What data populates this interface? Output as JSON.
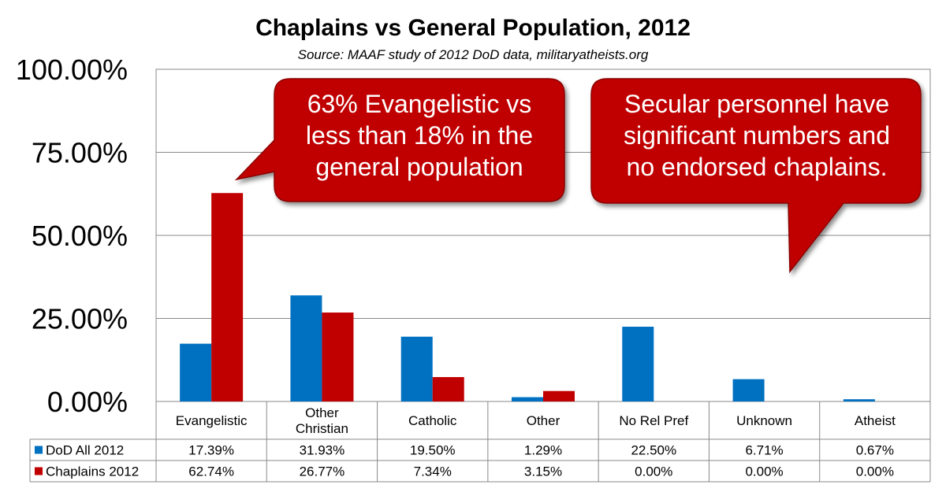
{
  "chart_data": {
    "type": "bar",
    "title": "Chaplains vs General Population, 2012",
    "subtitle": "Source: MAAF study of 2012 DoD data, militaryatheists.org",
    "categories": [
      [
        "Evangelistic"
      ],
      [
        "Other",
        "Christian"
      ],
      [
        "Catholic"
      ],
      [
        "Other"
      ],
      [
        "No Rel Pref"
      ],
      [
        "Unknown"
      ],
      [
        "Atheist"
      ]
    ],
    "series": [
      {
        "name": "DoD All 2012",
        "color": "#0070C0",
        "values": [
          17.39,
          31.93,
          19.5,
          1.29,
          22.5,
          6.71,
          0.67
        ],
        "labels": [
          "17.39%",
          "31.93%",
          "19.50%",
          "1.29%",
          "22.50%",
          "6.71%",
          "0.67%"
        ]
      },
      {
        "name": "Chaplains 2012",
        "color": "#C00000",
        "values": [
          62.74,
          26.77,
          7.34,
          3.15,
          0.0,
          0.0,
          0.0
        ],
        "labels": [
          "62.74%",
          "26.77%",
          "7.34%",
          "3.15%",
          "0.00%",
          "0.00%",
          "0.00%"
        ]
      }
    ],
    "ylim": [
      0,
      100
    ],
    "yticks": [
      "0.00%",
      "25.00%",
      "50.00%",
      "75.00%",
      "100.00%"
    ],
    "grid": true,
    "legend": "data-table",
    "annotations": [
      {
        "lines": [
          "63% Evangelistic vs",
          "less than 18% in the",
          "general population"
        ]
      },
      {
        "lines": [
          "Secular personnel have",
          "significant numbers and",
          "no endorsed chaplains."
        ]
      }
    ]
  }
}
